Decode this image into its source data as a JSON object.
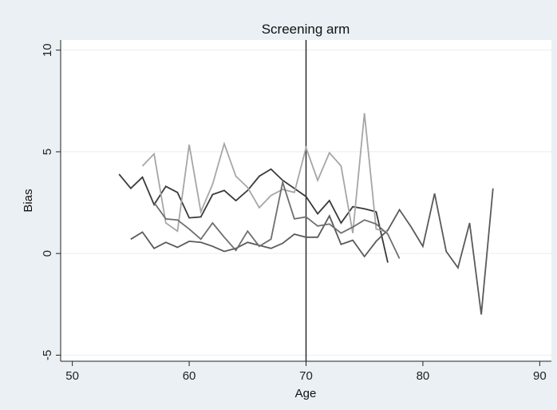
{
  "chart_data": {
    "type": "line",
    "title": "Screening arm",
    "xlabel": "Age",
    "ylabel": "Bias",
    "xlim": [
      49,
      91
    ],
    "ylim": [
      -5.3,
      10.5
    ],
    "xticks": [
      50,
      60,
      70,
      80,
      90
    ],
    "yticks": [
      -5,
      0,
      5,
      10
    ],
    "xtick_labels": [
      "50",
      "60",
      "70",
      "80",
      "90"
    ],
    "ytick_labels": [
      "-5",
      "0",
      "5",
      "10"
    ],
    "reference_line_x": 70,
    "grid": "horizontal",
    "legend": "none",
    "colors": {
      "background": "#eaf0f4",
      "plot_background": "#ffffff",
      "grid": "#e8eef2",
      "reference_line": "#2a2a2a"
    },
    "series": [
      {
        "color": "#3a3a3a",
        "x": [
          54,
          55,
          56,
          57,
          58,
          59,
          60,
          61,
          62,
          63,
          64,
          65,
          66,
          67,
          68,
          69,
          70,
          71,
          72,
          73,
          74,
          75,
          76,
          77
        ],
        "y": [
          3.9,
          3.2,
          3.75,
          2.4,
          3.3,
          3.0,
          1.75,
          1.8,
          2.9,
          3.1,
          2.6,
          3.1,
          3.8,
          4.15,
          3.6,
          3.2,
          2.8,
          1.95,
          2.6,
          1.5,
          2.3,
          2.2,
          2.05,
          -0.45
        ]
      },
      {
        "color": "#5a5a5a",
        "x": [
          55,
          56,
          57,
          58,
          59,
          60,
          61,
          62,
          63,
          64,
          65,
          66,
          67,
          68,
          69,
          70,
          71,
          72,
          73,
          74,
          75,
          76,
          77,
          78,
          79,
          80,
          81,
          82,
          83,
          84,
          85,
          86
        ],
        "y": [
          0.7,
          1.05,
          0.25,
          0.55,
          0.3,
          0.6,
          0.55,
          0.35,
          0.1,
          0.25,
          0.55,
          0.4,
          0.25,
          0.5,
          0.95,
          0.8,
          0.8,
          1.85,
          0.45,
          0.65,
          -0.15,
          0.6,
          1.15,
          2.15,
          1.3,
          0.35,
          2.95,
          0.1,
          -0.7,
          1.5,
          -3.0,
          3.2
        ]
      },
      {
        "color": "#a6a6a6",
        "x": [
          56,
          57,
          58,
          59,
          60,
          61,
          62,
          63,
          64,
          65,
          66,
          67,
          68,
          69,
          70,
          71,
          72,
          73,
          74,
          75,
          76,
          77
        ],
        "y": [
          4.3,
          4.9,
          1.5,
          1.1,
          5.35,
          2.05,
          3.4,
          5.4,
          3.8,
          3.25,
          2.25,
          2.85,
          3.15,
          3.0,
          5.2,
          3.6,
          4.95,
          4.3,
          1.0,
          6.9,
          1.2,
          1.05
        ]
      },
      {
        "color": "#6e6e6e",
        "x": [
          57,
          58,
          59,
          60,
          61,
          62,
          63,
          64,
          65,
          66,
          67,
          68,
          69,
          70,
          71,
          72,
          73,
          74,
          75,
          76,
          77,
          78
        ],
        "y": [
          2.5,
          1.7,
          1.65,
          1.2,
          0.7,
          1.5,
          0.8,
          0.15,
          1.1,
          0.35,
          0.7,
          3.5,
          1.7,
          1.8,
          1.35,
          1.45,
          1.0,
          1.3,
          1.65,
          1.45,
          0.95,
          -0.25
        ]
      }
    ]
  }
}
